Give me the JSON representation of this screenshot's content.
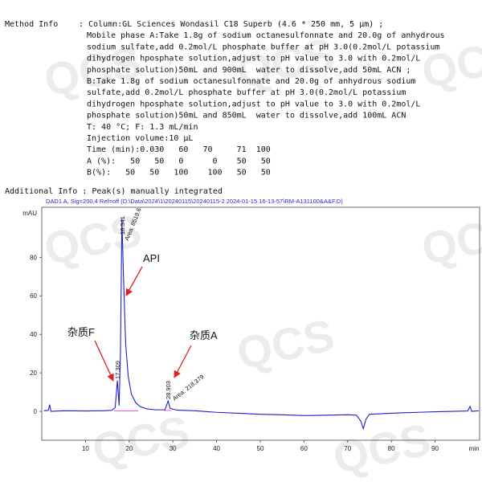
{
  "watermark": "QCS",
  "method_info": {
    "label": "Method Info",
    "lines": [
      ": Column:GL Sciences Wondasil C18 Superb (4.6 * 250 mm, 5 μm) ;",
      "Mobile phase A:Take 1.8g of sodium octanesulfonnate and 20.0g of anhydrous",
      "sodium sulfate,add 0.2mol/L phosphate buffer at pH 3.0(0.2mol/L potassium",
      "dihydrogen hposphate solution,adjust to pH value to 3.0 with 0.2mol/L",
      "phosphate solution)50mL and 900mL  water to dissolve,add 50mL ACN ;",
      "B:Take 1.8g of sodium octanesulfonnate and 20.0g of anhydrous sodium",
      "sulfate,add 0.2mol/L phosphate buffer at pH 3.0(0.2mol/L potassium",
      "dihydrogen hposphate solution,adjust to pH value to 3.0 with 0.2mol/L",
      "phosphate solution)50mL and 850mL  water to dissolve,add 100mL ACN",
      "T: 40 °C; F: 1.3 mL/min",
      "Injection volume:10 μL",
      "Time (min):0.030   60   70     71  100",
      "A (%):   50   50   0      0    50   50",
      "B(%):   50   50   100    100   50   50"
    ]
  },
  "additional_info": "Additional Info : Peak(s) manually integrated",
  "chart_data": {
    "type": "line",
    "title": "DAD1 A, Sig=200,4 Ref=off (D:\\Data\\2024\\1\\20240115\\20240115-2 2024-01-15 16-13-57\\RM-A131100&A&F.D)",
    "x_label": "min",
    "y_label": "mAU",
    "x": [
      0.5,
      1.5,
      1.8,
      2.1,
      5,
      10,
      14,
      16,
      16.8,
      17.309,
      17.7,
      18.0,
      18.341,
      18.7,
      19.2,
      19.8,
      20.5,
      21.5,
      22.5,
      24,
      26,
      28.2,
      28.903,
      29.4,
      31,
      35,
      40,
      45,
      50,
      55,
      60,
      65,
      70,
      72,
      73,
      73.6,
      74.2,
      75,
      78,
      82,
      86,
      90,
      94,
      97.5,
      98,
      98.4,
      100
    ],
    "series": [
      {
        "name": "DAD1 A",
        "color": "#1f1fd0",
        "values": [
          0.3,
          0.5,
          3.5,
          0,
          0.3,
          0.2,
          0.3,
          0.5,
          2,
          16,
          3,
          30,
          100,
          70,
          35,
          18,
          9,
          4.5,
          2.5,
          1.3,
          0.8,
          0.8,
          5.4,
          1.5,
          0.6,
          0.3,
          -0.5,
          -1,
          -1.5,
          -1.8,
          -2.2,
          -2,
          -1.8,
          -2,
          -5,
          -9,
          -4,
          -1.5,
          -1.2,
          -0.8,
          -0.5,
          -0.2,
          0,
          0.2,
          2.5,
          0,
          0.3
        ]
      }
    ],
    "xlim": [
      0,
      100.2
    ],
    "ylim": [
      -15,
      106
    ],
    "xticks": [
      10,
      20,
      30,
      40,
      50,
      60,
      70,
      80,
      90
    ],
    "yticks": [
      0,
      20,
      40,
      60,
      80
    ],
    "peaks": [
      {
        "x": 18.341,
        "area": "Area: 8519.6"
      },
      {
        "x": 17.309
      },
      {
        "x": 28.903,
        "area": "Area: 218.379"
      }
    ],
    "annotations": [
      "API",
      "杂质F",
      "杂质A"
    ]
  }
}
